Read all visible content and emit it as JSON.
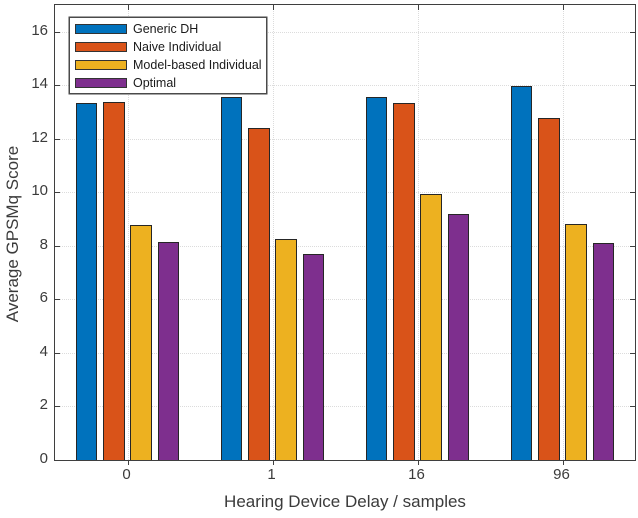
{
  "chart_data": {
    "type": "bar",
    "title": "",
    "xlabel": "Hearing Device Delay / samples",
    "ylabel": "Average GPSMq Score",
    "categories": [
      "0",
      "1",
      "16",
      "96"
    ],
    "series": [
      {
        "name": "Generic DH",
        "color": "#0072BD",
        "values": [
          13.33,
          13.56,
          13.57,
          13.97
        ]
      },
      {
        "name": "Naive Individual",
        "color": "#D95319",
        "values": [
          13.37,
          12.41,
          13.35,
          12.76
        ]
      },
      {
        "name": "Model-based Individual",
        "color": "#EDB120",
        "values": [
          8.78,
          8.27,
          9.94,
          8.83
        ]
      },
      {
        "name": "Optimal",
        "color": "#7E2F8E",
        "values": [
          8.15,
          7.71,
          9.19,
          8.12
        ]
      }
    ],
    "ylim": [
      0,
      17
    ],
    "yticks": [
      "0",
      "2",
      "4",
      "6",
      "8",
      "10",
      "12",
      "14",
      "16"
    ],
    "grid": true,
    "legend_position": "top-left",
    "axis_color": "#3f3f3f",
    "grid_color": "#dcdcdc"
  }
}
